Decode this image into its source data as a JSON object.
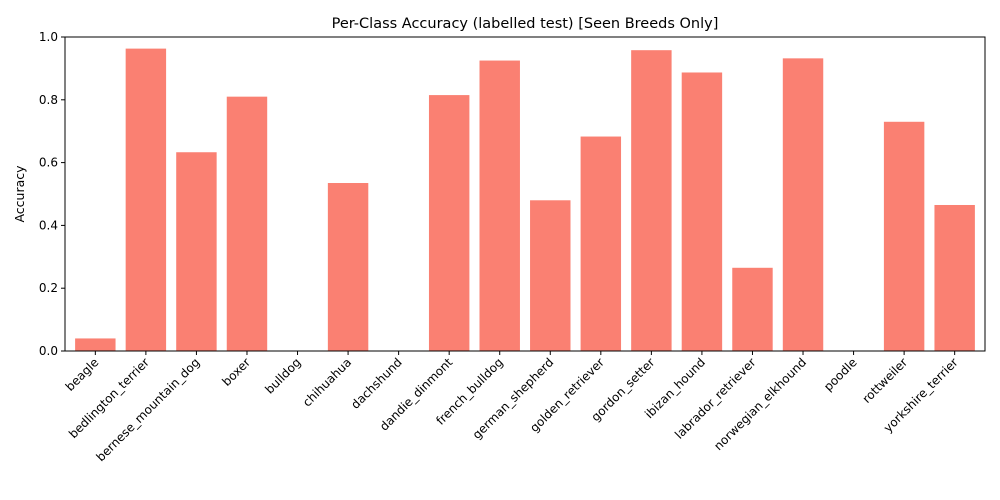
{
  "chart_data": {
    "type": "bar",
    "title": "Per-Class Accuracy (labelled test) [Seen Breeds Only]",
    "xlabel": "",
    "ylabel": "Accuracy",
    "ylim": [
      0,
      1.0
    ],
    "yticks": [
      0.0,
      0.2,
      0.4,
      0.6,
      0.8,
      1.0
    ],
    "ytick_labels": [
      "0.0",
      "0.2",
      "0.4",
      "0.6",
      "0.8",
      "1.0"
    ],
    "grid": false,
    "bar_color": "#fa8072",
    "categories": [
      "beagle",
      "bedlington_terrier",
      "bernese_mountain_dog",
      "boxer",
      "bulldog",
      "chihuahua",
      "dachshund",
      "dandie_dinmont",
      "french_bulldog",
      "german_shepherd",
      "golden_retriever",
      "gordon_setter",
      "ibizan_hound",
      "labrador_retriever",
      "norwegian_elkhound",
      "poodle",
      "rottweiler",
      "yorkshire_terrier"
    ],
    "values": [
      0.04,
      0.963,
      0.633,
      0.81,
      0.0,
      0.535,
      0.0,
      0.815,
      0.925,
      0.48,
      0.683,
      0.958,
      0.887,
      0.265,
      0.932,
      0.0,
      0.73,
      0.465
    ]
  }
}
